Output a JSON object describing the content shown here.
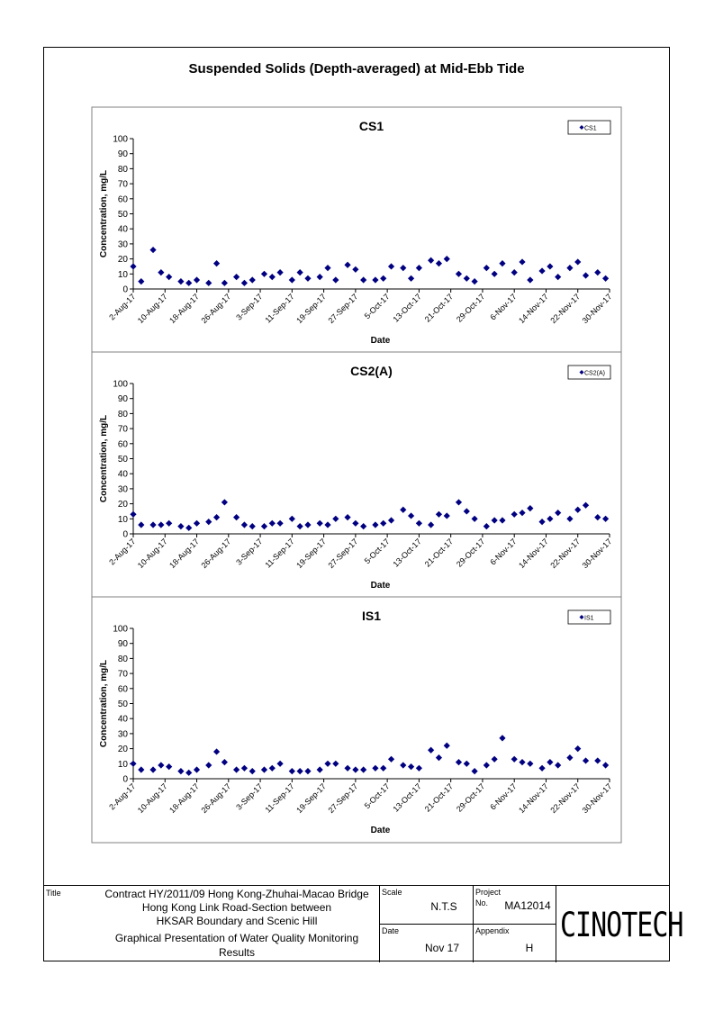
{
  "page": {
    "title": "Suspended Solids (Depth-averaged) at Mid-Ebb Tide"
  },
  "chart_data": [
    {
      "type": "scatter",
      "title": "CS1",
      "xlabel": "Date",
      "ylabel": "Concentration, mg/L",
      "ylim": [
        0,
        100
      ],
      "yticks": [
        0,
        10,
        20,
        30,
        40,
        50,
        60,
        70,
        80,
        90,
        100
      ],
      "xlim": [
        "2017-08-02",
        "2017-11-30"
      ],
      "xticks": [
        "2-Aug-17",
        "10-Aug-17",
        "18-Aug-17",
        "26-Aug-17",
        "3-Sep-17",
        "11-Sep-17",
        "19-Sep-17",
        "27-Sep-17",
        "5-Oct-17",
        "13-Oct-17",
        "21-Oct-17",
        "29-Oct-17",
        "6-Nov-17",
        "14-Nov-17",
        "22-Nov-17",
        "30-Nov-17"
      ],
      "legend": "top-right",
      "series": [
        {
          "name": "CS1",
          "color": "#000080",
          "marker": "diamond",
          "x": [
            "2017-08-02",
            "2017-08-04",
            "2017-08-07",
            "2017-08-09",
            "2017-08-11",
            "2017-08-14",
            "2017-08-16",
            "2017-08-18",
            "2017-08-21",
            "2017-08-23",
            "2017-08-25",
            "2017-08-28",
            "2017-08-30",
            "2017-09-01",
            "2017-09-04",
            "2017-09-06",
            "2017-09-08",
            "2017-09-11",
            "2017-09-13",
            "2017-09-15",
            "2017-09-18",
            "2017-09-20",
            "2017-09-22",
            "2017-09-25",
            "2017-09-27",
            "2017-09-29",
            "2017-10-02",
            "2017-10-04",
            "2017-10-06",
            "2017-10-09",
            "2017-10-11",
            "2017-10-13",
            "2017-10-16",
            "2017-10-18",
            "2017-10-20",
            "2017-10-23",
            "2017-10-25",
            "2017-10-27",
            "2017-10-30",
            "2017-11-01",
            "2017-11-03",
            "2017-11-06",
            "2017-11-08",
            "2017-11-10",
            "2017-11-13",
            "2017-11-15",
            "2017-11-17",
            "2017-11-20",
            "2017-11-22",
            "2017-11-24",
            "2017-11-27",
            "2017-11-29"
          ],
          "y": [
            15,
            5,
            26,
            11,
            8,
            5,
            4,
            6,
            4,
            17,
            4,
            8,
            4,
            6,
            10,
            8,
            11,
            6,
            11,
            7,
            8,
            14,
            6,
            16,
            13,
            6,
            6,
            7,
            15,
            14,
            7,
            14,
            19,
            17,
            20,
            10,
            7,
            5,
            14,
            10,
            17,
            11,
            18,
            6,
            12,
            15,
            8,
            14,
            18,
            9,
            11,
            7
          ]
        }
      ]
    },
    {
      "type": "scatter",
      "title": "CS2(A)",
      "xlabel": "Date",
      "ylabel": "Concentration, mg/L",
      "ylim": [
        0,
        100
      ],
      "yticks": [
        0,
        10,
        20,
        30,
        40,
        50,
        60,
        70,
        80,
        90,
        100
      ],
      "xlim": [
        "2017-08-02",
        "2017-11-30"
      ],
      "xticks": [
        "2-Aug-17",
        "10-Aug-17",
        "18-Aug-17",
        "26-Aug-17",
        "3-Sep-17",
        "11-Sep-17",
        "19-Sep-17",
        "27-Sep-17",
        "5-Oct-17",
        "13-Oct-17",
        "21-Oct-17",
        "29-Oct-17",
        "6-Nov-17",
        "14-Nov-17",
        "22-Nov-17",
        "30-Nov-17"
      ],
      "legend": "top-right",
      "series": [
        {
          "name": "CS2(A)",
          "color": "#000080",
          "marker": "diamond",
          "x": [
            "2017-08-02",
            "2017-08-04",
            "2017-08-07",
            "2017-08-09",
            "2017-08-11",
            "2017-08-14",
            "2017-08-16",
            "2017-08-18",
            "2017-08-21",
            "2017-08-23",
            "2017-08-25",
            "2017-08-28",
            "2017-08-30",
            "2017-09-01",
            "2017-09-04",
            "2017-09-06",
            "2017-09-08",
            "2017-09-11",
            "2017-09-13",
            "2017-09-15",
            "2017-09-18",
            "2017-09-20",
            "2017-09-22",
            "2017-09-25",
            "2017-09-27",
            "2017-09-29",
            "2017-10-02",
            "2017-10-04",
            "2017-10-06",
            "2017-10-09",
            "2017-10-11",
            "2017-10-13",
            "2017-10-16",
            "2017-10-18",
            "2017-10-20",
            "2017-10-23",
            "2017-10-25",
            "2017-10-27",
            "2017-10-30",
            "2017-11-01",
            "2017-11-03",
            "2017-11-06",
            "2017-11-08",
            "2017-11-10",
            "2017-11-13",
            "2017-11-15",
            "2017-11-17",
            "2017-11-20",
            "2017-11-22",
            "2017-11-24",
            "2017-11-27",
            "2017-11-29"
          ],
          "y": [
            13,
            6,
            6,
            6,
            7,
            5,
            4,
            7,
            8,
            11,
            21,
            11,
            6,
            5,
            5,
            7,
            7,
            10,
            5,
            6,
            7,
            6,
            10,
            11,
            7,
            5,
            6,
            7,
            9,
            16,
            12,
            7,
            6,
            13,
            12,
            21,
            15,
            10,
            5,
            9,
            9,
            13,
            14,
            17,
            8,
            10,
            14,
            10,
            16,
            19,
            11,
            10
          ]
        }
      ]
    },
    {
      "type": "scatter",
      "title": "IS1",
      "xlabel": "Date",
      "ylabel": "Concentration, mg/L",
      "ylim": [
        0,
        100
      ],
      "yticks": [
        0,
        10,
        20,
        30,
        40,
        50,
        60,
        70,
        80,
        90,
        100
      ],
      "xlim": [
        "2017-08-02",
        "2017-11-30"
      ],
      "xticks": [
        "2-Aug-17",
        "10-Aug-17",
        "18-Aug-17",
        "26-Aug-17",
        "3-Sep-17",
        "11-Sep-17",
        "19-Sep-17",
        "27-Sep-17",
        "5-Oct-17",
        "13-Oct-17",
        "21-Oct-17",
        "29-Oct-17",
        "6-Nov-17",
        "14-Nov-17",
        "22-Nov-17",
        "30-Nov-17"
      ],
      "legend": "top-right",
      "series": [
        {
          "name": "IS1",
          "color": "#000080",
          "marker": "diamond",
          "x": [
            "2017-08-02",
            "2017-08-04",
            "2017-08-07",
            "2017-08-09",
            "2017-08-11",
            "2017-08-14",
            "2017-08-16",
            "2017-08-18",
            "2017-08-21",
            "2017-08-23",
            "2017-08-25",
            "2017-08-28",
            "2017-08-30",
            "2017-09-01",
            "2017-09-04",
            "2017-09-06",
            "2017-09-08",
            "2017-09-11",
            "2017-09-13",
            "2017-09-15",
            "2017-09-18",
            "2017-09-20",
            "2017-09-22",
            "2017-09-25",
            "2017-09-27",
            "2017-09-29",
            "2017-10-02",
            "2017-10-04",
            "2017-10-06",
            "2017-10-09",
            "2017-10-11",
            "2017-10-13",
            "2017-10-16",
            "2017-10-18",
            "2017-10-20",
            "2017-10-23",
            "2017-10-25",
            "2017-10-27",
            "2017-10-30",
            "2017-11-01",
            "2017-11-03",
            "2017-11-06",
            "2017-11-08",
            "2017-11-10",
            "2017-11-13",
            "2017-11-15",
            "2017-11-17",
            "2017-11-20",
            "2017-11-22",
            "2017-11-24",
            "2017-11-27",
            "2017-11-29"
          ],
          "y": [
            10,
            6,
            6,
            9,
            8,
            5,
            4,
            6,
            9,
            18,
            11,
            6,
            7,
            5,
            6,
            7,
            10,
            5,
            5,
            5,
            6,
            10,
            10,
            7,
            6,
            6,
            7,
            7,
            13,
            9,
            8,
            7,
            19,
            14,
            22,
            11,
            10,
            5,
            9,
            13,
            27,
            13,
            11,
            10,
            7,
            11,
            9,
            14,
            20,
            12,
            12,
            9
          ]
        }
      ]
    }
  ],
  "title_block": {
    "title_label": "Title",
    "title_lines": [
      "Contract HY/2011/09 Hong Kong-Zhuhai-Macao Bridge",
      "Hong Kong Link Road-Section between",
      "HKSAR Boundary and Scenic Hill"
    ],
    "subtitle_lines": [
      "Graphical Presentation of Water Quality Monitoring",
      "Results"
    ],
    "scale_label": "Scale",
    "scale_value": "N.T.S",
    "project_label": "Project",
    "project_no_label": "No.",
    "project_value": "MA12014",
    "date_label": "Date",
    "date_value": "Nov 17",
    "appendix_label": "Appendix",
    "appendix_value": "H",
    "logo_text": "CINOTECH"
  }
}
